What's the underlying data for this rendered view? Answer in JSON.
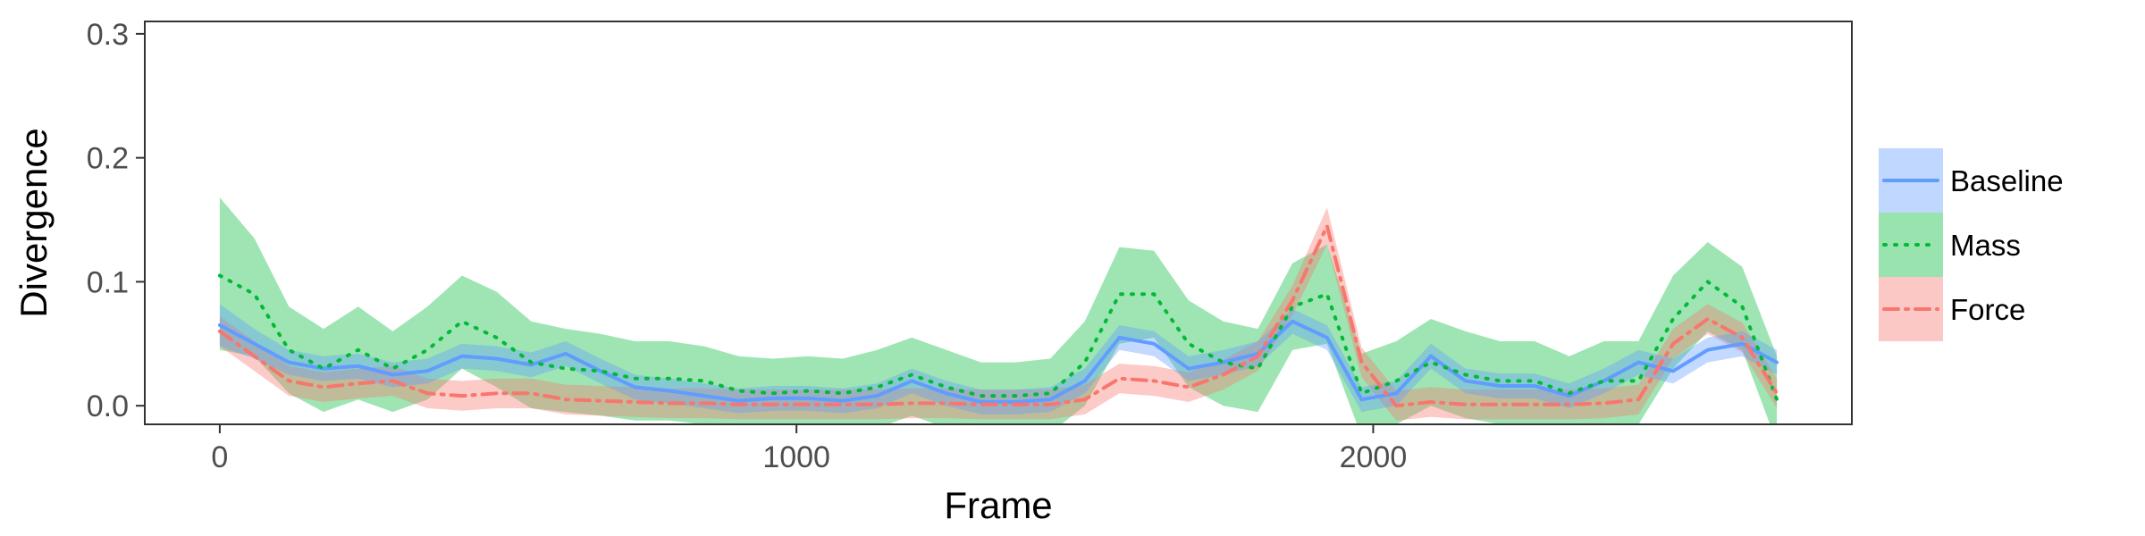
{
  "chart_data": {
    "type": "line",
    "xlabel": "Frame",
    "ylabel": "Divergence",
    "xlim": [
      -130,
      2830
    ],
    "ylim": [
      -0.015,
      0.31
    ],
    "xticks": [
      0,
      1000,
      2000
    ],
    "xtick_labels": [
      "0",
      "1000",
      "2000"
    ],
    "yticks": [
      0.0,
      0.1,
      0.2,
      0.3
    ],
    "ytick_labels": [
      "0.0",
      "0.1",
      "0.2",
      "0.3"
    ],
    "grid": false,
    "legend_position": "right",
    "series": [
      {
        "name": "Baseline",
        "color": "#619CFF",
        "line_style": "solid",
        "x": [
          0,
          60,
          120,
          180,
          240,
          300,
          360,
          420,
          480,
          540,
          600,
          660,
          720,
          780,
          840,
          900,
          960,
          1020,
          1080,
          1140,
          1200,
          1260,
          1320,
          1380,
          1440,
          1500,
          1560,
          1620,
          1680,
          1740,
          1800,
          1860,
          1920,
          1980,
          2040,
          2100,
          2160,
          2220,
          2280,
          2340,
          2400,
          2460,
          2520,
          2580,
          2640,
          2700
        ],
        "y": [
          0.065,
          0.05,
          0.035,
          0.03,
          0.032,
          0.025,
          0.028,
          0.04,
          0.038,
          0.033,
          0.042,
          0.028,
          0.015,
          0.012,
          0.008,
          0.004,
          0.006,
          0.006,
          0.004,
          0.008,
          0.02,
          0.01,
          0.003,
          0.003,
          0.005,
          0.02,
          0.055,
          0.05,
          0.03,
          0.035,
          0.042,
          0.068,
          0.055,
          0.005,
          0.01,
          0.04,
          0.02,
          0.016,
          0.016,
          0.008,
          0.02,
          0.035,
          0.028,
          0.045,
          0.05,
          0.035
        ],
        "ci_low": [
          0.048,
          0.038,
          0.025,
          0.02,
          0.022,
          0.015,
          0.018,
          0.03,
          0.028,
          0.023,
          0.032,
          0.018,
          0.005,
          0.002,
          -0.002,
          -0.006,
          -0.004,
          -0.004,
          -0.006,
          -0.002,
          0.01,
          0.0,
          -0.007,
          -0.007,
          -0.005,
          0.01,
          0.045,
          0.04,
          0.02,
          0.025,
          0.032,
          0.058,
          0.045,
          -0.005,
          0.0,
          0.03,
          0.01,
          0.006,
          0.006,
          -0.002,
          0.01,
          0.025,
          0.018,
          0.035,
          0.04,
          0.025
        ],
        "ci_high": [
          0.082,
          0.062,
          0.045,
          0.04,
          0.042,
          0.035,
          0.038,
          0.05,
          0.048,
          0.043,
          0.052,
          0.038,
          0.025,
          0.022,
          0.018,
          0.014,
          0.016,
          0.016,
          0.014,
          0.018,
          0.03,
          0.02,
          0.013,
          0.013,
          0.015,
          0.03,
          0.065,
          0.06,
          0.04,
          0.045,
          0.052,
          0.078,
          0.065,
          0.015,
          0.02,
          0.05,
          0.03,
          0.026,
          0.026,
          0.018,
          0.03,
          0.045,
          0.038,
          0.055,
          0.06,
          0.045
        ]
      },
      {
        "name": "Mass",
        "color": "#00BA38",
        "line_style": "dotted",
        "x": [
          0,
          60,
          120,
          180,
          240,
          300,
          360,
          420,
          480,
          540,
          600,
          660,
          720,
          780,
          840,
          900,
          960,
          1020,
          1080,
          1140,
          1200,
          1260,
          1320,
          1380,
          1440,
          1500,
          1560,
          1620,
          1680,
          1740,
          1800,
          1860,
          1920,
          1980,
          2040,
          2100,
          2160,
          2220,
          2280,
          2340,
          2400,
          2460,
          2520,
          2580,
          2640,
          2700
        ],
        "y": [
          0.105,
          0.09,
          0.045,
          0.03,
          0.045,
          0.03,
          0.045,
          0.068,
          0.055,
          0.035,
          0.03,
          0.028,
          0.022,
          0.022,
          0.02,
          0.012,
          0.01,
          0.012,
          0.01,
          0.015,
          0.025,
          0.015,
          0.008,
          0.008,
          0.01,
          0.035,
          0.09,
          0.09,
          0.05,
          0.035,
          0.03,
          0.08,
          0.09,
          0.01,
          0.02,
          0.035,
          0.025,
          0.02,
          0.02,
          0.01,
          0.02,
          0.02,
          0.07,
          0.1,
          0.08,
          0.005
        ],
        "ci_low": [
          0.045,
          0.04,
          0.01,
          -0.005,
          0.005,
          -0.005,
          0.005,
          0.03,
          0.015,
          -0.002,
          -0.005,
          -0.008,
          -0.012,
          -0.012,
          -0.015,
          -0.02,
          -0.022,
          -0.02,
          -0.022,
          -0.018,
          -0.008,
          -0.018,
          -0.025,
          -0.025,
          -0.022,
          0.0,
          0.05,
          0.055,
          0.015,
          0.0,
          -0.005,
          0.045,
          0.05,
          -0.025,
          -0.015,
          0.0,
          -0.01,
          -0.015,
          -0.015,
          -0.022,
          -0.015,
          -0.015,
          0.03,
          0.06,
          0.045,
          -0.03
        ],
        "ci_high": [
          0.168,
          0.135,
          0.08,
          0.062,
          0.08,
          0.06,
          0.08,
          0.105,
          0.092,
          0.068,
          0.062,
          0.058,
          0.052,
          0.052,
          0.048,
          0.04,
          0.038,
          0.04,
          0.038,
          0.045,
          0.055,
          0.045,
          0.035,
          0.035,
          0.038,
          0.068,
          0.128,
          0.125,
          0.085,
          0.068,
          0.062,
          0.115,
          0.13,
          0.042,
          0.052,
          0.07,
          0.06,
          0.052,
          0.052,
          0.04,
          0.052,
          0.052,
          0.105,
          0.132,
          0.112,
          0.04
        ]
      },
      {
        "name": "Force",
        "color": "#F8766D",
        "line_style": "dashdot",
        "x": [
          0,
          60,
          120,
          180,
          240,
          300,
          360,
          420,
          480,
          540,
          600,
          660,
          720,
          780,
          840,
          900,
          960,
          1020,
          1080,
          1140,
          1200,
          1260,
          1320,
          1380,
          1440,
          1500,
          1560,
          1620,
          1680,
          1740,
          1800,
          1860,
          1920,
          1980,
          2040,
          2100,
          2160,
          2220,
          2280,
          2340,
          2400,
          2460,
          2520,
          2580,
          2640,
          2700
        ],
        "y": [
          0.06,
          0.04,
          0.02,
          0.015,
          0.018,
          0.02,
          0.01,
          0.008,
          0.01,
          0.01,
          0.005,
          0.004,
          0.003,
          0.002,
          0.002,
          0.001,
          0.001,
          0.001,
          0.001,
          0.001,
          0.002,
          0.002,
          0.001,
          0.001,
          0.001,
          0.005,
          0.022,
          0.02,
          0.015,
          0.025,
          0.04,
          0.085,
          0.145,
          0.035,
          0.0,
          0.003,
          0.001,
          0.001,
          0.001,
          0.001,
          0.002,
          0.005,
          0.05,
          0.07,
          0.055,
          0.01
        ],
        "ci_low": [
          0.048,
          0.028,
          0.008,
          0.003,
          0.006,
          0.008,
          -0.002,
          -0.004,
          -0.002,
          -0.002,
          -0.007,
          -0.008,
          -0.009,
          -0.01,
          -0.01,
          -0.011,
          -0.011,
          -0.011,
          -0.011,
          -0.011,
          -0.01,
          -0.01,
          -0.011,
          -0.011,
          -0.011,
          -0.007,
          0.01,
          0.008,
          0.003,
          0.013,
          0.028,
          0.073,
          0.13,
          0.023,
          -0.012,
          -0.009,
          -0.011,
          -0.011,
          -0.011,
          -0.011,
          -0.01,
          -0.007,
          0.038,
          0.058,
          0.043,
          -0.002
        ],
        "ci_high": [
          0.072,
          0.052,
          0.032,
          0.027,
          0.03,
          0.032,
          0.022,
          0.02,
          0.022,
          0.022,
          0.017,
          0.016,
          0.015,
          0.014,
          0.014,
          0.013,
          0.013,
          0.013,
          0.013,
          0.013,
          0.014,
          0.014,
          0.013,
          0.013,
          0.013,
          0.017,
          0.034,
          0.032,
          0.027,
          0.037,
          0.052,
          0.097,
          0.16,
          0.047,
          0.012,
          0.015,
          0.013,
          0.013,
          0.013,
          0.013,
          0.014,
          0.017,
          0.062,
          0.082,
          0.067,
          0.022
        ]
      }
    ]
  }
}
